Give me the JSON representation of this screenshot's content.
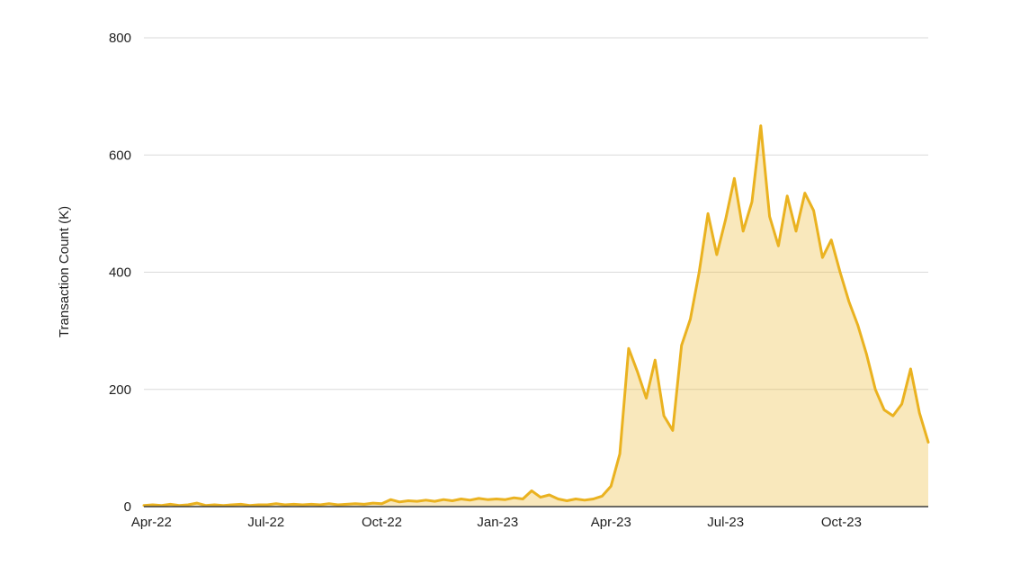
{
  "chart_data": {
    "type": "area",
    "title": "",
    "xlabel": "",
    "ylabel": "Transaction Count (K)",
    "ylim": [
      0,
      800
    ],
    "y_ticks": [
      0,
      200,
      400,
      600,
      800
    ],
    "x_tick_labels": [
      "Apr-22",
      "Jul-22",
      "Oct-22",
      "Jan-23",
      "Apr-23",
      "Jul-23",
      "Oct-23"
    ],
    "x_tick_dates": [
      "2022-04-01",
      "2022-07-01",
      "2022-10-01",
      "2023-01-01",
      "2023-04-01",
      "2023-07-01",
      "2023-10-01"
    ],
    "grid": true,
    "legend_position": "none",
    "line_color": "#EAB220",
    "fill_color": "#EAB220",
    "fill_opacity": 0.3,
    "gridline_color": "#DADADA",
    "axis_line_color": "#3c3c3c",
    "text_color": "#1f1f1f",
    "series": [
      {
        "name": "Transaction Count (K)",
        "start_date": "2022-03-26",
        "interval_days": 7,
        "values": [
          2,
          3,
          2,
          4,
          2,
          3,
          6,
          2,
          3,
          2,
          3,
          4,
          2,
          3,
          3,
          5,
          3,
          4,
          3,
          4,
          3,
          5,
          3,
          4,
          5,
          4,
          6,
          5,
          12,
          8,
          10,
          9,
          11,
          9,
          12,
          10,
          13,
          11,
          14,
          12,
          13,
          12,
          15,
          13,
          27,
          16,
          20,
          13,
          10,
          13,
          11,
          13,
          18,
          35,
          90,
          270,
          230,
          185,
          250,
          155,
          130,
          275,
          320,
          400,
          500,
          430,
          490,
          560,
          470,
          520,
          650,
          495,
          445,
          530,
          470,
          535,
          505,
          425,
          455,
          400,
          350,
          310,
          260,
          200,
          165,
          155,
          175,
          235,
          160,
          110
        ]
      }
    ]
  }
}
